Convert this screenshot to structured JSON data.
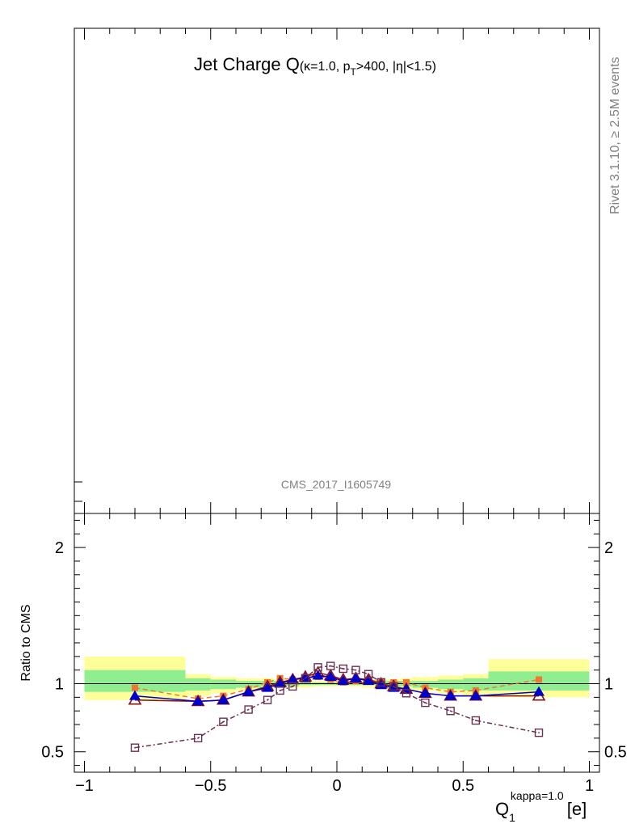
{
  "title": {
    "main": "Jet Charge Q",
    "detail_open": "(",
    "kappa_sym": "κ",
    "kappa_val": "=1.0, p",
    "pt_sub": "T",
    "pt_cut": ">400, |",
    "eta_sym": "η",
    "eta_cut": "|<1.5)"
  },
  "side_label": "Rivet 3.1.10, ≥ 2.5M events",
  "analysis_label": "CMS_2017_I1605749",
  "chart_data": {
    "type": "line",
    "ratio_panel": {
      "ylabel": "Ratio to CMS",
      "ylim": [
        0.35,
        2.25
      ],
      "xlim": [
        -1.04,
        1.04
      ],
      "xlabel_main": "Q",
      "xlabel_sub": "1",
      "xlabel_sup": "kappa=1.0",
      "xlabel_unit": "[e]",
      "xticks": [
        -1,
        -0.5,
        0,
        0.5,
        1
      ],
      "xtick_labels": [
        "−1",
        "−0.5",
        "0",
        "0.5",
        "1"
      ],
      "yticks": [
        0.5,
        1,
        2
      ],
      "ytick_labels": [
        "0.5",
        "1",
        "2"
      ],
      "reference_line": 1.0,
      "bins": [
        -1.0,
        -0.6,
        -0.5,
        -0.4,
        -0.3,
        -0.25,
        -0.2,
        -0.15,
        -0.1,
        -0.05,
        0.0,
        0.05,
        0.1,
        0.15,
        0.2,
        0.25,
        0.3,
        0.4,
        0.5,
        0.6,
        1.0
      ],
      "band_yellow": [
        [
          0.88,
          1.2
        ],
        [
          0.91,
          1.07
        ],
        [
          0.93,
          1.05
        ],
        [
          0.95,
          1.04
        ],
        [
          0.96,
          1.04
        ],
        [
          0.97,
          1.03
        ],
        [
          0.97,
          1.03
        ],
        [
          0.97,
          1.03
        ],
        [
          0.98,
          1.02
        ],
        [
          0.98,
          1.02
        ],
        [
          0.98,
          1.02
        ],
        [
          0.98,
          1.02
        ],
        [
          0.97,
          1.03
        ],
        [
          0.97,
          1.03
        ],
        [
          0.97,
          1.03
        ],
        [
          0.96,
          1.04
        ],
        [
          0.95,
          1.05
        ],
        [
          0.93,
          1.06
        ],
        [
          0.91,
          1.07
        ],
        [
          0.9,
          1.18
        ]
      ],
      "band_green": [
        [
          0.94,
          1.1
        ],
        [
          0.95,
          1.04
        ],
        [
          0.96,
          1.03
        ],
        [
          0.97,
          1.02
        ],
        [
          0.98,
          1.02
        ],
        [
          0.98,
          1.02
        ],
        [
          0.98,
          1.02
        ],
        [
          0.99,
          1.01
        ],
        [
          0.99,
          1.01
        ],
        [
          0.99,
          1.01
        ],
        [
          0.99,
          1.01
        ],
        [
          0.99,
          1.01
        ],
        [
          0.99,
          1.01
        ],
        [
          0.98,
          1.02
        ],
        [
          0.98,
          1.02
        ],
        [
          0.98,
          1.02
        ],
        [
          0.97,
          1.02
        ],
        [
          0.96,
          1.03
        ],
        [
          0.95,
          1.04
        ],
        [
          0.95,
          1.09
        ]
      ],
      "series": [
        {
          "color": "#f07830",
          "marker": "square-filled",
          "dash": "6,4",
          "x": [
            -0.8,
            -0.55,
            -0.45,
            -0.35,
            -0.275,
            -0.225,
            -0.175,
            -0.125,
            -0.075,
            -0.025,
            0.025,
            0.075,
            0.125,
            0.175,
            0.225,
            0.275,
            0.35,
            0.45,
            0.55,
            0.8
          ],
          "y": [
            0.97,
            0.89,
            0.91,
            0.96,
            1.01,
            1.04,
            1.03,
            1.04,
            1.05,
            1.03,
            1.01,
            1.02,
            1.03,
            1.01,
            1.01,
            1.01,
            0.97,
            0.94,
            0.95,
            1.03
          ]
        },
        {
          "color": "#8b1010",
          "marker": "triangle-open",
          "dash": "",
          "x": [
            -0.8,
            -0.55,
            -0.45,
            -0.35,
            -0.275,
            -0.225,
            -0.175,
            -0.125,
            -0.075,
            -0.025,
            0.025,
            0.075,
            0.125,
            0.175,
            0.225,
            0.275,
            0.35,
            0.45,
            0.55,
            0.8
          ],
          "y": [
            0.88,
            0.87,
            0.88,
            0.94,
            0.98,
            1.01,
            1.03,
            1.05,
            1.08,
            1.06,
            1.03,
            1.04,
            1.03,
            1.0,
            0.98,
            0.96,
            0.93,
            0.91,
            0.91,
            0.91
          ]
        },
        {
          "color": "#0000cc",
          "marker": "triangle-filled",
          "dash": "",
          "x": [
            -0.8,
            -0.55,
            -0.45,
            -0.35,
            -0.275,
            -0.225,
            -0.175,
            -0.125,
            -0.075,
            -0.025,
            0.025,
            0.075,
            0.125,
            0.175,
            0.225,
            0.275,
            0.35,
            0.45,
            0.55,
            0.8
          ],
          "y": [
            0.91,
            0.87,
            0.88,
            0.94,
            0.97,
            1.0,
            1.03,
            1.04,
            1.06,
            1.05,
            1.02,
            1.04,
            1.02,
            0.99,
            0.97,
            0.96,
            0.93,
            0.91,
            0.91,
            0.94
          ]
        },
        {
          "color": "#6b3050",
          "marker": "square-open",
          "dash": "6,3,2,3",
          "x": [
            -0.8,
            -0.55,
            -0.45,
            -0.35,
            -0.275,
            -0.225,
            -0.175,
            -0.125,
            -0.075,
            -0.025,
            0.025,
            0.075,
            0.125,
            0.175,
            0.225,
            0.275,
            0.35,
            0.45,
            0.55,
            0.8
          ],
          "y": [
            0.53,
            0.6,
            0.72,
            0.81,
            0.88,
            0.95,
            0.98,
            1.04,
            1.12,
            1.13,
            1.11,
            1.1,
            1.07,
            1.01,
            0.98,
            0.93,
            0.86,
            0.8,
            0.73,
            0.64
          ]
        }
      ]
    }
  }
}
